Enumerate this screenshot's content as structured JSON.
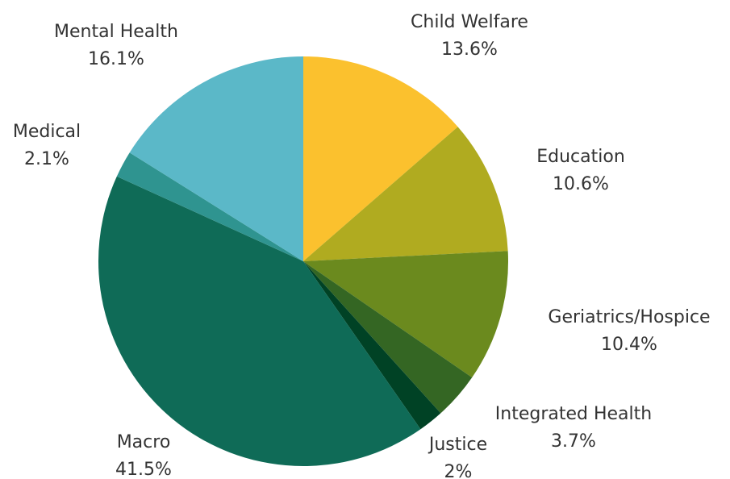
{
  "chart_data": {
    "type": "pie",
    "title": "",
    "slices": [
      {
        "label": "Child Welfare",
        "value": 13.6,
        "display": "13.6%",
        "color": "#FBC12E"
      },
      {
        "label": "Education",
        "value": 10.6,
        "display": "10.6%",
        "color": "#B0AB20"
      },
      {
        "label": "Geriatrics/Hospice",
        "value": 10.4,
        "display": "10.4%",
        "color": "#6B8A1E"
      },
      {
        "label": "Integrated Health",
        "value": 3.7,
        "display": "3.7%",
        "color": "#346623"
      },
      {
        "label": "Justice",
        "value": 2.0,
        "display": "2%",
        "color": "#004225"
      },
      {
        "label": "Macro",
        "value": 41.5,
        "display": "41.5%",
        "color": "#0F6B57"
      },
      {
        "label": "Medical",
        "value": 2.1,
        "display": "2.1%",
        "color": "#2F9490"
      },
      {
        "label": "Mental Health",
        "value": 16.1,
        "display": "16.1%",
        "color": "#5BB8C8"
      }
    ],
    "start_angle": "12 o'clock",
    "direction": "clockwise",
    "legend": "none",
    "labels": "outside"
  }
}
